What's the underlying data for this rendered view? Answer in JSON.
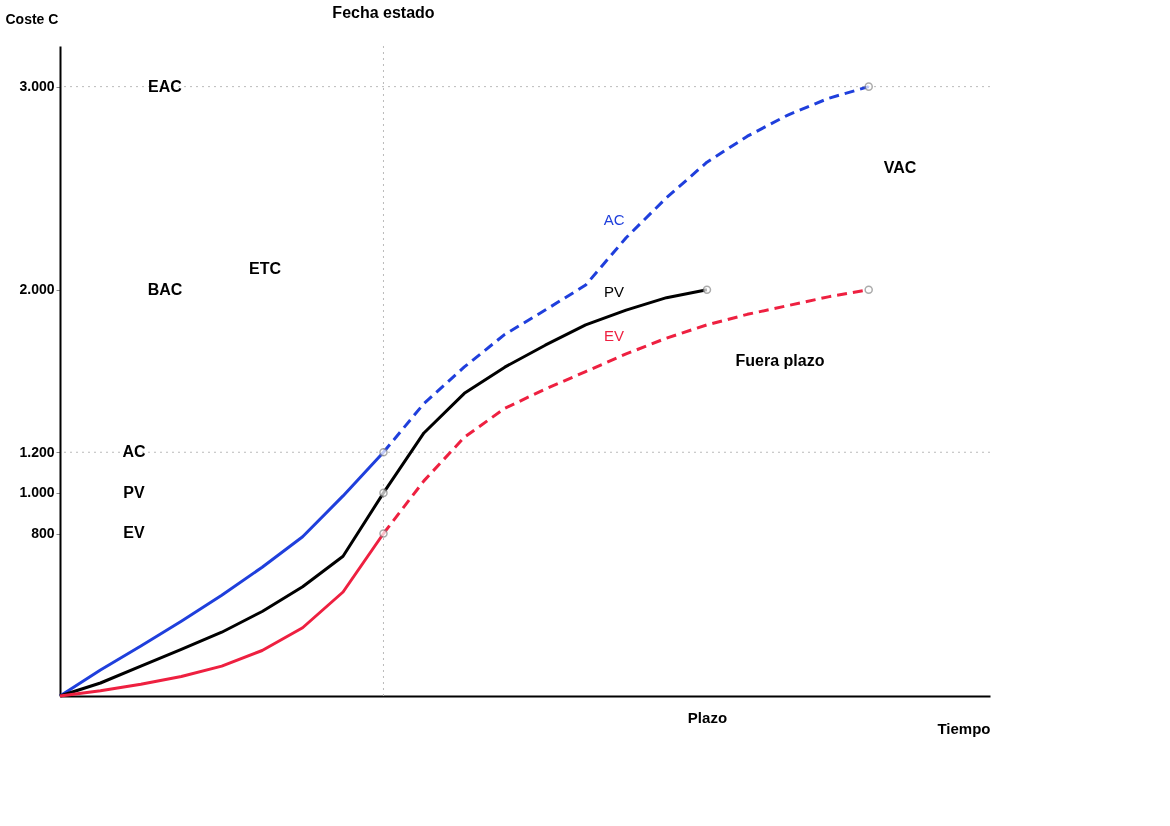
{
  "chart_data": {
    "type": "line",
    "xlabel": "Tiempo",
    "ylabel": "Coste C",
    "categories": [
      null,
      null,
      null,
      null,
      null,
      null,
      null,
      null,
      null,
      null,
      null,
      null,
      null,
      null,
      null,
      null,
      "Plazo",
      null,
      null,
      null,
      null,
      null,
      null,
      null
    ],
    "ylim": [
      0,
      3200
    ],
    "yticks": [
      {
        "value": 800,
        "label": "800"
      },
      {
        "value": 1000,
        "label": "1.000"
      },
      {
        "value": 1200,
        "label": "1.200"
      },
      {
        "value": 2000,
        "label": "2.000"
      },
      {
        "value": 3000,
        "label": "3.000"
      }
    ],
    "grid": false,
    "series": [
      {
        "color": "#1f3fdc",
        "line_style": "solid",
        "values": [
          0,
          128,
          246,
          368,
          496,
          634,
          784,
          985,
          1200,
          null,
          null,
          null,
          null,
          null,
          null,
          null,
          null,
          null,
          null,
          null,
          null,
          null,
          null,
          null
        ]
      },
      {
        "name": "AC",
        "color": "#1f3fdc",
        "line_style": "dashed",
        "values": [
          null,
          null,
          null,
          null,
          null,
          null,
          null,
          null,
          1200,
          1440,
          1620,
          1780,
          1900,
          2023,
          2256,
          2453,
          2628,
          2756,
          2860,
          2942,
          3000,
          null,
          null,
          null
        ]
      },
      {
        "name": "PV",
        "color": "#000000",
        "line_style": "solid",
        "values": [
          0,
          64,
          147,
          230,
          314,
          416,
          538,
          688,
          1000,
          1295,
          1490,
          1619,
          1727,
          1827,
          1900,
          1961,
          2000,
          null,
          null,
          null,
          null,
          null,
          null,
          null
        ]
      },
      {
        "color": "#ee2040",
        "line_style": "solid",
        "values": [
          0,
          26,
          58,
          96,
          147,
          224,
          336,
          512,
          800,
          null,
          null,
          null,
          null,
          null,
          null,
          null,
          null,
          null,
          null,
          null,
          null,
          null,
          null,
          null
        ]
      },
      {
        "name": "EV",
        "color": "#ee2040",
        "line_style": "dashed",
        "values": [
          null,
          null,
          null,
          null,
          null,
          null,
          null,
          null,
          800,
          1059,
          1274,
          1416,
          1511,
          1597,
          1684,
          1762,
          1827,
          1879,
          1922,
          1965,
          2000,
          null,
          null,
          null
        ]
      },
      {
        "type": "scatter",
        "marker": "circle",
        "color": "#888888",
        "values": [
          null,
          null,
          null,
          null,
          null,
          null,
          null,
          null,
          1200,
          null,
          null,
          null,
          null,
          null,
          null,
          null,
          null,
          null,
          null,
          null,
          3000,
          null,
          null,
          null
        ]
      },
      {
        "type": "scatter",
        "marker": "circle",
        "color": "#888888",
        "values": [
          null,
          null,
          null,
          null,
          null,
          null,
          null,
          null,
          1000,
          null,
          null,
          null,
          null,
          null,
          null,
          null,
          2000,
          null,
          null,
          null,
          null,
          null,
          null,
          null
        ]
      },
      {
        "type": "scatter",
        "marker": "circle",
        "color": "#888888",
        "values": [
          null,
          null,
          null,
          null,
          null,
          null,
          null,
          null,
          800,
          null,
          null,
          null,
          null,
          null,
          null,
          null,
          null,
          null,
          null,
          null,
          2000,
          null,
          null,
          null
        ]
      }
    ],
    "ref_lines": [
      {
        "axis": "x",
        "label": "Fecha estado",
        "line_style": "dotted",
        "color": "#bbbbbb"
      },
      {
        "axis": "y",
        "value": 3000,
        "line_style": "dotted",
        "color": "#bbbbbb"
      },
      {
        "axis": "y",
        "value": 1200,
        "line_style": "dotted",
        "color": "#bbbbbb"
      }
    ],
    "annotations": [
      "AC",
      "PV",
      "EV",
      "EAC",
      "BAC",
      "ETC",
      "VAC",
      "Fuera plazo"
    ]
  }
}
